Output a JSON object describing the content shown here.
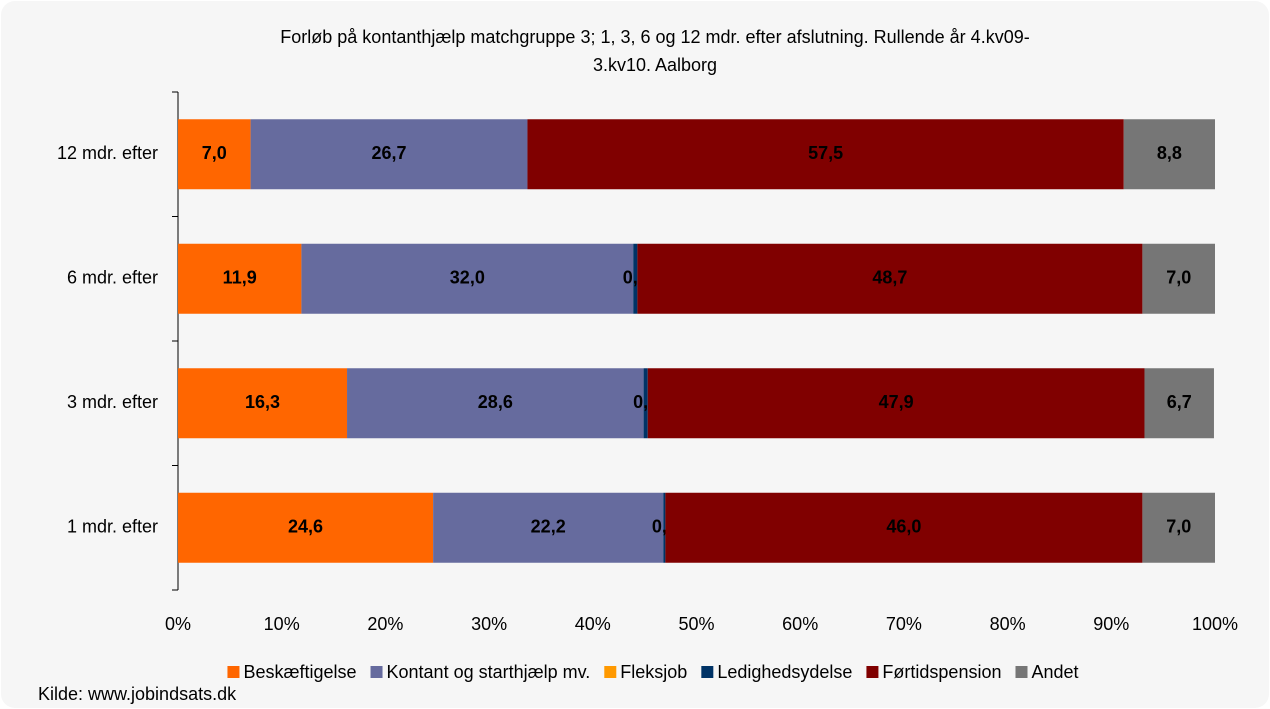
{
  "chart_data": {
    "type": "stacked-bar-horizontal",
    "title": [
      "Forløb på kontanthjælp matchgruppe 3; 1, 3, 6 og 12 mdr. efter afslutning. Rullende år 4.kv09-",
      "3.kv10. Aalborg"
    ],
    "categories": [
      "12 mdr. efter",
      "6 mdr. efter",
      "3 mdr. efter",
      "1 mdr. efter"
    ],
    "series": [
      {
        "name": "Beskæftigelse",
        "color": "#ff6600",
        "label_color": "#000000",
        "values": [
          7.0,
          11.9,
          16.3,
          24.6
        ],
        "value_labels": [
          "7,0",
          "11,9",
          "16,3",
          "24,6"
        ]
      },
      {
        "name": "Kontant og starthjælp mv.",
        "color": "#666b9e",
        "label_color": "#000000",
        "values": [
          26.7,
          32.0,
          28.6,
          22.2
        ],
        "value_labels": [
          "26,7",
          "32,0",
          "28,6",
          "22,2"
        ]
      },
      {
        "name": "Fleksjob",
        "color": "#ff9900",
        "label_color": "#000000",
        "values": [
          0,
          0,
          0,
          0
        ],
        "value_labels": [
          null,
          null,
          null,
          null
        ]
      },
      {
        "name": "Ledighedsydelse",
        "color": "#003366",
        "label_color": "#ffffff",
        "values": [
          0,
          0.4,
          0.4,
          0.2
        ],
        "value_labels": [
          null,
          "0,4",
          "0,4",
          "0,2"
        ]
      },
      {
        "name": "Førtidspension",
        "color": "#800000",
        "label_color": "#ffffff",
        "values": [
          57.5,
          48.7,
          47.9,
          46.0
        ],
        "value_labels": [
          "57,5",
          "48,7",
          "47,9",
          "46,0"
        ]
      },
      {
        "name": "Andet",
        "color": "#767676",
        "label_color": "#000000",
        "values": [
          8.8,
          7.0,
          6.7,
          7.0
        ],
        "value_labels": [
          "8,8",
          "7,0",
          "6,7",
          "7,0"
        ]
      }
    ],
    "xlim": [
      0,
      100
    ],
    "xticks": [
      {
        "value": 0,
        "label": "0%"
      },
      {
        "value": 10,
        "label": "10%"
      },
      {
        "value": 20,
        "label": "20%"
      },
      {
        "value": 30,
        "label": "30%"
      },
      {
        "value": 40,
        "label": "40%"
      },
      {
        "value": 50,
        "label": "50%"
      },
      {
        "value": 60,
        "label": "60%"
      },
      {
        "value": 70,
        "label": "70%"
      },
      {
        "value": 80,
        "label": "80%"
      },
      {
        "value": 90,
        "label": "90%"
      },
      {
        "value": 100,
        "label": "100%"
      }
    ],
    "legend": "bottom",
    "source": "Kilde: www.jobindsats.dk"
  }
}
